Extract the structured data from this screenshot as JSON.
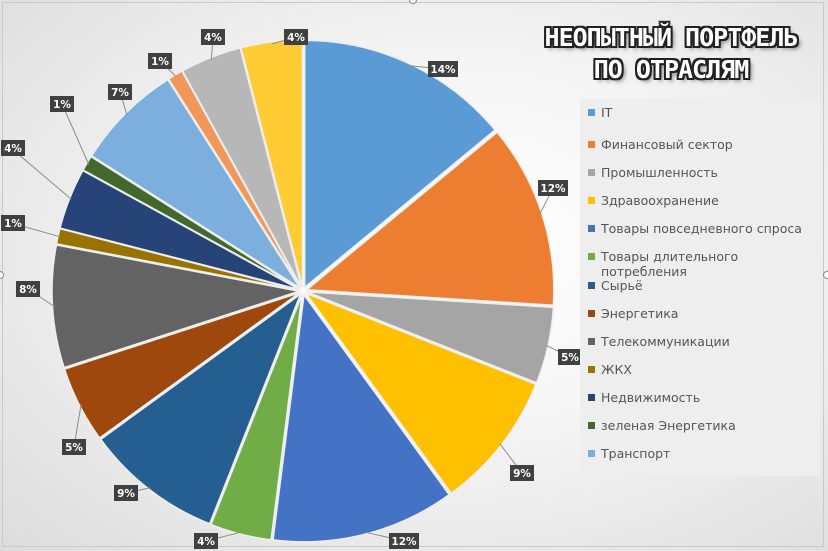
{
  "chart_data": {
    "type": "pie",
    "title_lines": [
      "НЕОПЫТНЫЙ ПОРТФЕЛЬ",
      "ПО ОТРАСЛЯМ"
    ],
    "legend_position": "right",
    "slices": [
      {
        "label": "IT",
        "value": 14,
        "value_label": "14%",
        "color": "#5B9BD5"
      },
      {
        "label": "Финансовый сектор",
        "value": 12,
        "value_label": "12%",
        "color": "#ED7D31"
      },
      {
        "label": "Промышленность",
        "value": 5,
        "value_label": "5%",
        "color": "#A5A5A5"
      },
      {
        "label": "Здравоохранение",
        "value": 9,
        "value_label": "9%",
        "color": "#FFC000"
      },
      {
        "label": "Товары повседневного спроса",
        "value": 12,
        "value_label": "12%",
        "color": "#4472C4"
      },
      {
        "label": "Товары длительного потребления",
        "value": 4,
        "value_label": "4%",
        "color": "#70AD47"
      },
      {
        "label": "Сырьё",
        "value": 9,
        "value_label": "9%",
        "color": "#255E91"
      },
      {
        "label": "Энергетика",
        "value": 5,
        "value_label": "5%",
        "color": "#9E480E"
      },
      {
        "label": "Телекоммуникации",
        "value": 8,
        "value_label": "8%",
        "color": "#636363"
      },
      {
        "label": "ЖКХ",
        "value": 1,
        "value_label": "1%",
        "color": "#997300"
      },
      {
        "label": "Недвижимость",
        "value": 4,
        "value_label": "4%",
        "color": "#264478"
      },
      {
        "label": "зеленая Энергетика",
        "value": 1,
        "value_label": "1%",
        "color": "#43682B"
      },
      {
        "label": "Транспорт",
        "value": 7,
        "value_label": "7%",
        "color": "#7CAFDD"
      },
      {
        "label": "",
        "value": 1,
        "value_label": "1%",
        "color": "#F1975A"
      },
      {
        "label": "",
        "value": 4,
        "value_label": "4%",
        "color": "#B7B7B7"
      },
      {
        "label": "",
        "value": 4,
        "value_label": "4%",
        "color": "#FFCD33"
      }
    ],
    "legend": [
      {
        "label": "IT",
        "color": "#5B9BD5"
      },
      {
        "label": "Финансовый сектор",
        "color": "#ED7D31"
      },
      {
        "label": "Промышленность",
        "color": "#A5A5A5"
      },
      {
        "label": "Здравоохранение",
        "color": "#FFC000"
      },
      {
        "label": "Товары повседневного спроса",
        "color": "#4472C4"
      },
      {
        "label": "Товары длительного потребления",
        "color": "#70AD47"
      },
      {
        "label": "Сырьё",
        "color": "#255E91"
      },
      {
        "label": "Энергетика",
        "color": "#9E480E"
      },
      {
        "label": "Телекоммуникации",
        "color": "#636363"
      },
      {
        "label": "ЖКХ",
        "color": "#997300"
      },
      {
        "label": "Недвижимость",
        "color": "#264478"
      },
      {
        "label": "зеленая Энергетика",
        "color": "#43682B"
      },
      {
        "label": "Транспорт",
        "color": "#7CAFDD"
      }
    ]
  }
}
